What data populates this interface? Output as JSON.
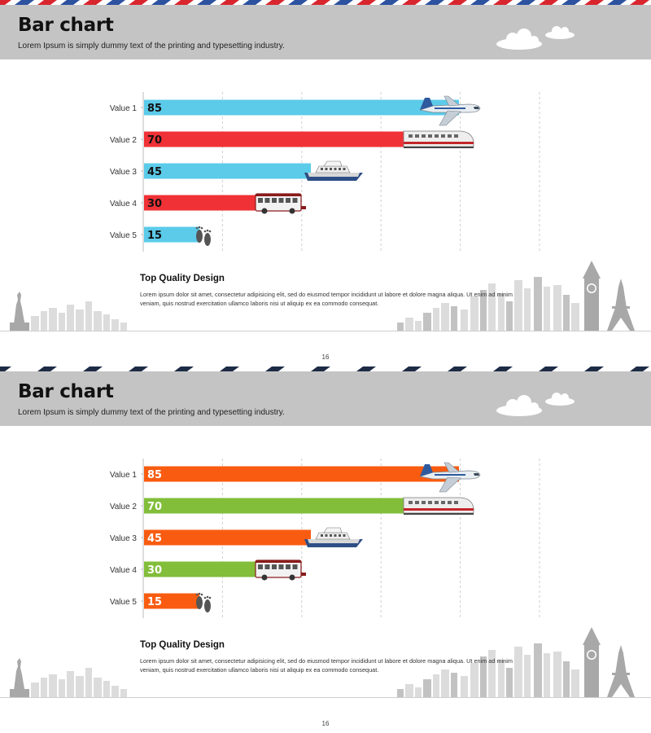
{
  "slides": [
    {
      "title": "Bar chart",
      "subtitle": "Lorem Ipsum is simply dummy text of the printing and typesetting industry.",
      "stripe_colors": [
        "#d9262e",
        "#2c52a0"
      ],
      "bar_colors": [
        "#5bcbe9",
        "#f03136"
      ],
      "label_color": "#111111",
      "desc_title": "Top Quality Design",
      "desc_body": "Lorem  ipsum dolor sit amet, consectetur  adipisicing elit, sed do eiusmod tempor  incididunt ut labore et dolore magna  aliqua. Ut enim ad minim veniam, quis nostrud exercitation ullamco laboris nisi ut aliquip ex ea commodo  consequat.",
      "page_number": "16"
    },
    {
      "title": "Bar chart",
      "subtitle": "Lorem Ipsum is simply dummy text of the printing and typesetting industry.",
      "stripe_colors": [
        "#1d2b45",
        "#ffffff"
      ],
      "bar_colors": [
        "#f95c10",
        "#82be3a"
      ],
      "label_color": "#ffffff",
      "desc_title": "Top Quality Design",
      "desc_body": "Lorem  ipsum dolor sit amet, consectetur  adipisicing elit, sed do eiusmod tempor  incididunt ut labore et dolore magna  aliqua. Ut enim ad minim veniam, quis nostrud exercitation ullamco laboris nisi ut aliquip ex ea commodo  consequat.",
      "page_number": "16"
    }
  ],
  "chart_data": {
    "type": "bar",
    "orientation": "horizontal",
    "categories": [
      "Value 1",
      "Value 2",
      "Value 3",
      "Value 4",
      "Value 5"
    ],
    "values": [
      85,
      70,
      45,
      30,
      15
    ],
    "icons": [
      "airplane-icon",
      "train-icon",
      "ship-icon",
      "bus-icon",
      "footprints-icon"
    ],
    "xlim": [
      0,
      100
    ],
    "grid": true
  }
}
